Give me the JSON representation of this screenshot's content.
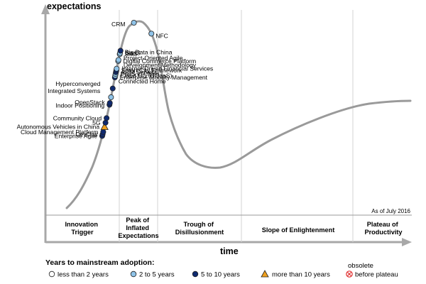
{
  "chart_data": {
    "type": "scatter",
    "subtype": "hype-cycle",
    "ylabel": "expectations",
    "xlabel": "time",
    "as_of": "As of July 2016",
    "phases": [
      {
        "lines": [
          "Innovation",
          "Trigger"
        ]
      },
      {
        "lines": [
          "Peak of",
          "Inflated",
          "Expectations"
        ]
      },
      {
        "lines": [
          "Trough of",
          "Disillusionment"
        ]
      },
      {
        "lines": [
          "Slope of Enlightenment"
        ]
      },
      {
        "lines": [
          "Plateau of",
          "Productivity"
        ]
      }
    ],
    "legend": {
      "title": "Years to mainstream adoption:",
      "obsolete_label": "obsolete",
      "items": [
        {
          "key": "lt2",
          "label": "less than 2 years",
          "color": "#ffffff"
        },
        {
          "key": "2to5",
          "label": "2 to 5 years",
          "color": "#8fc3e8"
        },
        {
          "key": "5to10",
          "label": "5 to 10 years",
          "color": "#0f2a70"
        },
        {
          "key": "gt10",
          "label": "more than 10 years",
          "color": "#f0a01e"
        },
        {
          "key": "obs",
          "label": "before plateau",
          "color": "#e03030"
        }
      ]
    },
    "technologies": [
      {
        "name": "Enterprise Agile",
        "t": 0.137,
        "adoption": "5to10"
      },
      {
        "name": "DevOps",
        "t": 0.14,
        "adoption": "5to10"
      },
      {
        "name": "Cloud Management Platform",
        "t": 0.144,
        "adoption": "5to10"
      },
      {
        "name": "Autonomous Vehicles in China",
        "t": 0.153,
        "adoption": "gt10"
      },
      {
        "name": "5G",
        "t": 0.16,
        "adoption": "5to10"
      },
      {
        "name": "Community Cloud",
        "t": 0.168,
        "adoption": "5to10"
      },
      {
        "name": "Indoor Positioning",
        "t": 0.191,
        "adoption": "5to10"
      },
      {
        "name": "OpenStack",
        "t": 0.194,
        "adoption": "5to10"
      },
      {
        "name": "Hyperconverged Integrated Systems",
        "t": 0.204,
        "adoption": "2to5"
      },
      {
        "name": "Connected Home",
        "t": 0.219,
        "adoption": "5to10"
      },
      {
        "name": "Enterprise Mobility Management",
        "t": 0.238,
        "adoption": "5to10"
      },
      {
        "name": "Cloud UC (UCaaS)",
        "t": 0.241,
        "adoption": "2to5"
      },
      {
        "name": "PaaS in China",
        "t": 0.244,
        "adoption": "2to5"
      },
      {
        "name": "ARM Servers",
        "t": 0.247,
        "adoption": "5to10"
      },
      {
        "name": "Smart City Framework",
        "t": 0.25,
        "adoption": "5to10"
      },
      {
        "name": "Internet-Driven Financial Services",
        "t": 0.253,
        "adoption": "2to5"
      },
      {
        "name": "Digital Commerce Platform",
        "t": 0.266,
        "adoption": "2to5"
      },
      {
        "name": "Project-Oriented Agile Development Methodology",
        "t": 0.268,
        "adoption": "2to5"
      },
      {
        "name": "Big Data in China",
        "t": 0.278,
        "adoption": "2to5"
      },
      {
        "name": "IaaS",
        "t": 0.28,
        "adoption": "2to5"
      },
      {
        "name": "SaaS",
        "t": 0.284,
        "adoption": "5to10"
      },
      {
        "name": "CRM",
        "t": 0.338,
        "adoption": "2to5"
      },
      {
        "name": "NFC",
        "t": 0.378,
        "adoption": "2to5"
      }
    ]
  }
}
